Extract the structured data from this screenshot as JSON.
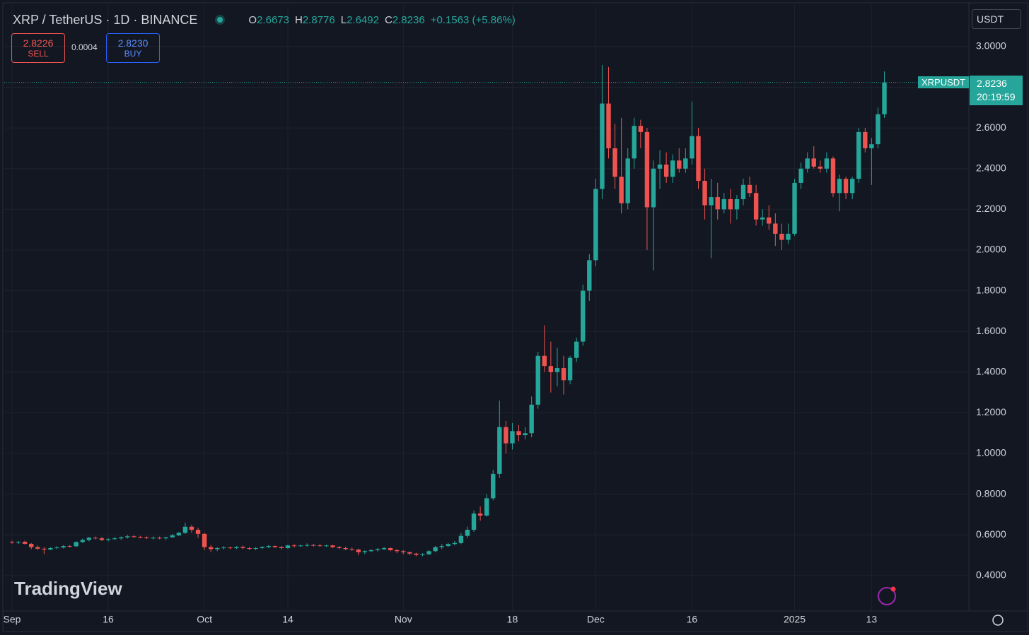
{
  "toolbar": {
    "symbol": "XRP / TetherUS · 1D · BINANCE",
    "ohlc": [
      {
        "label": "O",
        "value": "2.6673"
      },
      {
        "label": "H",
        "value": "2.8776"
      },
      {
        "label": "L",
        "value": "2.6492"
      },
      {
        "label": "C",
        "value": "2.8236"
      }
    ],
    "change": "+0.1563 (+5.86%)",
    "sell": {
      "price": "2.8226",
      "label": "SELL"
    },
    "spread": "0.0004",
    "buy": {
      "price": "2.8230",
      "label": "BUY"
    },
    "currency": "USDT"
  },
  "price_tag": {
    "symbol": "XRPUSDT",
    "price": "2.8236",
    "countdown": "20:19:59"
  },
  "watermark": "TradingView",
  "chart_data": {
    "type": "candlestick",
    "categories": [
      "Sep",
      null,
      null,
      null,
      null,
      null,
      null,
      null,
      null,
      null,
      null,
      null,
      null,
      null,
      null,
      "16",
      null,
      null,
      null,
      null,
      null,
      null,
      null,
      null,
      null,
      null,
      null,
      null,
      null,
      null,
      "Oct",
      null,
      null,
      null,
      null,
      null,
      null,
      null,
      null,
      null,
      null,
      null,
      null,
      "14",
      null,
      null,
      null,
      null,
      null,
      null,
      null,
      null,
      null,
      null,
      null,
      null,
      null,
      null,
      null,
      null,
      null,
      "Nov",
      null,
      null,
      null,
      null,
      null,
      null,
      null,
      null,
      null,
      null,
      null,
      null,
      null,
      null,
      null,
      null,
      "18",
      null,
      null,
      null,
      null,
      null,
      null,
      null,
      null,
      null,
      null,
      null,
      null,
      "Dec",
      null,
      null,
      null,
      null,
      null,
      null,
      null,
      null,
      null,
      null,
      null,
      null,
      null,
      null,
      "16",
      null,
      null,
      null,
      null,
      null,
      null,
      null,
      null,
      null,
      null,
      null,
      null,
      null,
      null,
      null,
      "2025",
      null,
      null,
      null,
      null,
      null,
      null,
      null,
      null,
      null,
      null,
      null,
      "13",
      null,
      null
    ],
    "open": [
      0.565,
      0.563,
      0.566,
      0.556,
      0.54,
      0.532,
      0.528,
      0.535,
      0.538,
      0.545,
      0.544,
      0.565,
      0.575,
      0.586,
      0.583,
      0.575,
      0.579,
      0.583,
      0.588,
      0.593,
      0.59,
      0.588,
      0.584,
      0.586,
      0.583,
      0.588,
      0.598,
      0.61,
      0.64,
      0.625,
      0.605,
      0.54,
      0.53,
      0.535,
      0.538,
      0.535,
      0.54,
      0.535,
      0.532,
      0.535,
      0.54,
      0.545,
      0.54,
      0.535,
      0.548,
      0.545,
      0.548,
      0.55,
      0.548,
      0.545,
      0.548,
      0.54,
      0.535,
      0.53,
      0.528,
      0.515,
      0.52,
      0.525,
      0.53,
      0.535,
      0.525,
      0.52,
      0.515,
      0.508,
      0.502,
      0.505,
      0.52,
      0.54,
      0.545,
      0.555,
      0.56,
      0.595,
      0.625,
      0.705,
      0.695,
      0.78,
      0.9,
      1.13,
      1.05,
      1.11,
      1.09,
      1.1,
      1.24,
      1.48,
      1.43,
      1.4,
      1.42,
      1.36,
      1.47,
      1.55,
      1.8,
      1.95,
      2.3,
      2.72,
      2.5,
      2.36,
      2.23,
      2.45,
      2.61,
      2.58,
      2.21,
      2.4,
      2.42,
      2.36,
      2.44,
      2.4,
      2.45,
      2.56,
      2.34,
      2.22,
      2.26,
      2.2,
      2.25,
      2.2,
      2.25,
      2.32,
      2.28,
      2.15,
      2.16,
      2.13,
      2.08,
      2.05,
      2.08,
      2.33,
      2.4,
      2.45,
      2.41,
      2.4,
      2.45,
      2.28,
      2.35,
      2.28,
      2.35,
      2.58,
      2.5,
      2.52,
      2.6673
    ],
    "high": [
      0.572,
      0.57,
      0.572,
      0.56,
      0.548,
      0.54,
      0.54,
      0.545,
      0.55,
      0.55,
      0.568,
      0.582,
      0.59,
      0.592,
      0.59,
      0.585,
      0.59,
      0.592,
      0.6,
      0.598,
      0.595,
      0.592,
      0.592,
      0.592,
      0.59,
      0.605,
      0.615,
      0.66,
      0.65,
      0.635,
      0.61,
      0.55,
      0.54,
      0.545,
      0.542,
      0.545,
      0.548,
      0.54,
      0.54,
      0.545,
      0.55,
      0.548,
      0.545,
      0.552,
      0.555,
      0.552,
      0.558,
      0.556,
      0.555,
      0.552,
      0.552,
      0.545,
      0.542,
      0.538,
      0.532,
      0.525,
      0.53,
      0.535,
      0.54,
      0.538,
      0.53,
      0.525,
      0.518,
      0.512,
      0.51,
      0.525,
      0.545,
      0.555,
      0.56,
      0.57,
      0.61,
      0.64,
      0.72,
      0.74,
      0.8,
      0.92,
      1.26,
      1.16,
      1.15,
      1.14,
      1.13,
      1.28,
      1.5,
      1.63,
      1.55,
      1.52,
      1.48,
      1.48,
      1.57,
      1.83,
      1.98,
      2.35,
      2.91,
      2.9,
      2.62,
      2.65,
      2.5,
      2.65,
      2.64,
      2.6,
      2.44,
      2.49,
      2.48,
      2.47,
      2.5,
      2.5,
      2.73,
      2.6,
      2.4,
      2.35,
      2.33,
      2.28,
      2.3,
      2.27,
      2.35,
      2.36,
      2.32,
      2.2,
      2.22,
      2.18,
      2.13,
      2.13,
      2.35,
      2.43,
      2.48,
      2.51,
      2.44,
      2.48,
      2.46,
      2.37,
      2.36,
      2.36,
      2.6,
      2.6,
      2.55,
      2.7,
      2.8776
    ],
    "low": [
      0.557,
      0.555,
      0.553,
      0.53,
      0.525,
      0.505,
      0.525,
      0.53,
      0.533,
      0.538,
      0.54,
      0.56,
      0.568,
      0.578,
      0.57,
      0.568,
      0.575,
      0.575,
      0.582,
      0.585,
      0.584,
      0.58,
      0.578,
      0.578,
      0.575,
      0.585,
      0.594,
      0.605,
      0.61,
      0.585,
      0.525,
      0.515,
      0.52,
      0.528,
      0.53,
      0.53,
      0.53,
      0.525,
      0.525,
      0.53,
      0.535,
      0.536,
      0.528,
      0.532,
      0.538,
      0.54,
      0.542,
      0.543,
      0.542,
      0.54,
      0.535,
      0.53,
      0.525,
      0.522,
      0.5,
      0.505,
      0.515,
      0.518,
      0.525,
      0.52,
      0.51,
      0.505,
      0.5,
      0.495,
      0.495,
      0.5,
      0.515,
      0.53,
      0.54,
      0.548,
      0.555,
      0.585,
      0.615,
      0.67,
      0.69,
      0.77,
      0.88,
      1.0,
      1.02,
      1.06,
      1.07,
      1.08,
      1.22,
      1.4,
      1.3,
      1.33,
      1.29,
      1.34,
      1.45,
      1.53,
      1.75,
      1.92,
      2.25,
      2.45,
      2.3,
      2.18,
      2.2,
      2.4,
      2.5,
      2.0,
      1.9,
      2.3,
      2.33,
      2.33,
      2.38,
      2.38,
      2.42,
      2.3,
      2.15,
      1.96,
      2.15,
      2.18,
      2.13,
      2.15,
      2.22,
      2.26,
      2.12,
      2.12,
      2.1,
      2.02,
      2.0,
      2.03,
      2.07,
      2.3,
      2.38,
      2.4,
      2.38,
      2.38,
      2.26,
      2.19,
      2.25,
      2.25,
      2.33,
      2.48,
      2.32,
      2.5,
      2.6492
    ],
    "close": [
      0.563,
      0.566,
      0.556,
      0.54,
      0.532,
      0.528,
      0.535,
      0.538,
      0.545,
      0.544,
      0.565,
      0.575,
      0.586,
      0.583,
      0.575,
      0.579,
      0.583,
      0.588,
      0.593,
      0.59,
      0.588,
      0.584,
      0.586,
      0.583,
      0.588,
      0.598,
      0.61,
      0.64,
      0.625,
      0.605,
      0.54,
      0.53,
      0.535,
      0.538,
      0.535,
      0.54,
      0.535,
      0.532,
      0.535,
      0.54,
      0.545,
      0.54,
      0.535,
      0.548,
      0.545,
      0.548,
      0.55,
      0.548,
      0.545,
      0.548,
      0.54,
      0.535,
      0.53,
      0.528,
      0.515,
      0.52,
      0.525,
      0.53,
      0.535,
      0.525,
      0.52,
      0.515,
      0.508,
      0.502,
      0.505,
      0.52,
      0.54,
      0.545,
      0.555,
      0.56,
      0.595,
      0.625,
      0.705,
      0.695,
      0.78,
      0.9,
      1.13,
      1.05,
      1.11,
      1.09,
      1.1,
      1.24,
      1.48,
      1.43,
      1.4,
      1.42,
      1.36,
      1.47,
      1.55,
      1.8,
      1.95,
      2.3,
      2.72,
      2.5,
      2.36,
      2.23,
      2.45,
      2.61,
      2.58,
      2.21,
      2.4,
      2.42,
      2.36,
      2.44,
      2.4,
      2.45,
      2.56,
      2.34,
      2.22,
      2.26,
      2.2,
      2.25,
      2.2,
      2.25,
      2.32,
      2.28,
      2.15,
      2.16,
      2.13,
      2.08,
      2.05,
      2.08,
      2.33,
      2.4,
      2.45,
      2.41,
      2.4,
      2.45,
      2.28,
      2.35,
      2.28,
      2.35,
      2.58,
      2.5,
      2.52,
      2.6673,
      2.8236
    ],
    "up_color": "#26a69a",
    "down_color": "#ef5350",
    "ylim": [
      0.226,
      3.201
    ],
    "yticks": [
      {
        "value": 0.4,
        "label": "0.4000"
      },
      {
        "value": 0.6,
        "label": "0.6000"
      },
      {
        "value": 0.8,
        "label": "0.8000"
      },
      {
        "value": 1.0,
        "label": "1.0000"
      },
      {
        "value": 1.2,
        "label": "1.2000"
      },
      {
        "value": 1.4,
        "label": "1.4000"
      },
      {
        "value": 1.6,
        "label": "1.6000"
      },
      {
        "value": 1.8,
        "label": "1.8000"
      },
      {
        "value": 2.0,
        "label": "2.0000"
      },
      {
        "value": 2.2,
        "label": "2.2000"
      },
      {
        "value": 2.4,
        "label": "2.4000"
      },
      {
        "value": 2.6,
        "label": "2.6000"
      },
      {
        "value": 2.8,
        "label": "2.8000"
      },
      {
        "value": 3.0,
        "label": "3.0000"
      }
    ],
    "grid": true
  }
}
